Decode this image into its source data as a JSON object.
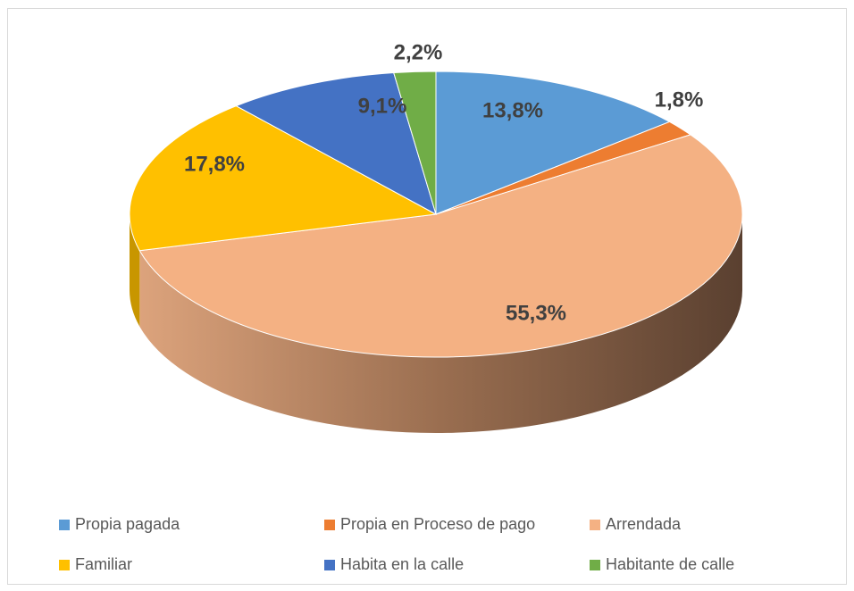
{
  "chart_data": {
    "type": "pie",
    "categories": [
      "Propia pagada",
      "Propia en Proceso de pago",
      "Arrendada",
      "Familiar",
      "Habita en la calle",
      "Habitante de calle"
    ],
    "values": [
      13.8,
      1.8,
      55.3,
      17.8,
      9.1,
      2.2
    ],
    "value_labels": [
      "13,8%",
      "1,8%",
      "55,3%",
      "17,8%",
      "9,1%",
      "2,2%"
    ],
    "colors": [
      "#5B9BD5",
      "#ED7D31",
      "#F4B183",
      "#FFC000",
      "#4472C4",
      "#70AD47"
    ],
    "legend": "bottom"
  }
}
